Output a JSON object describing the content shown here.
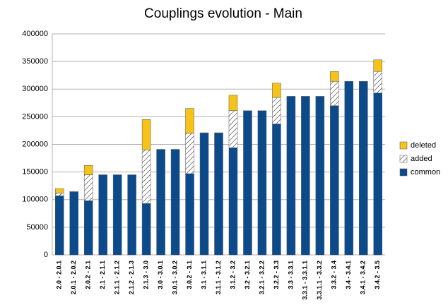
{
  "chart_data": {
    "type": "stacked_bar",
    "title": "Couplings evolution - Main",
    "categories": [
      "2.0 - 2.0.1",
      "2.0.1 - 2.0.2",
      "2.0.2 - 2.1",
      "2.1 - 2.1.1",
      "2.1.1 - 2.1.2",
      "2.1.2 - 2.1.3",
      "2.1.3 - 3.0",
      "3.0 - 3.0.1",
      "3.0.1 - 3.0.2",
      "3.0.2 - 3.1",
      "3.1 - 3.1.1",
      "3.1.1 - 3.1.2",
      "3.1.2 - 3.2",
      "3.2 - 3.2.1",
      "3.2.1 - 3.2.2",
      "3.2.2 - 3.3",
      "3.3 - 3.3.1",
      "3.3.1 - 3.3.1.1",
      "3.3.1.1 - 3.3.2",
      "3.3.2 - 3.4",
      "3.4 - 3.4.1",
      "3.4.1 - 3.4.2",
      "3.4.2 - 3.5"
    ],
    "series": [
      {
        "name": "common",
        "color": "#0b4b8c",
        "values": [
          107000,
          114000,
          98000,
          145000,
          145000,
          145000,
          93000,
          191000,
          191000,
          147000,
          221000,
          221000,
          194000,
          261000,
          261000,
          237000,
          287000,
          287000,
          287000,
          270000,
          314000,
          314000,
          293000
        ]
      },
      {
        "name": "added",
        "color": "hatch",
        "values": [
          5000,
          1000,
          47000,
          0,
          0,
          0,
          97000,
          0,
          0,
          73000,
          0,
          0,
          67000,
          0,
          0,
          48000,
          0,
          0,
          0,
          44000,
          0,
          0,
          39000
        ]
      },
      {
        "name": "deleted",
        "color": "#f5c319",
        "values": [
          8000,
          0,
          17000,
          0,
          0,
          0,
          55000,
          0,
          0,
          45000,
          0,
          0,
          28000,
          0,
          0,
          26000,
          0,
          0,
          0,
          18000,
          0,
          0,
          21000
        ]
      }
    ],
    "ylim": [
      0,
      400000
    ],
    "yticks": [
      0,
      50000,
      100000,
      150000,
      200000,
      250000,
      300000,
      350000,
      400000
    ],
    "grid": true,
    "legend": "right"
  }
}
